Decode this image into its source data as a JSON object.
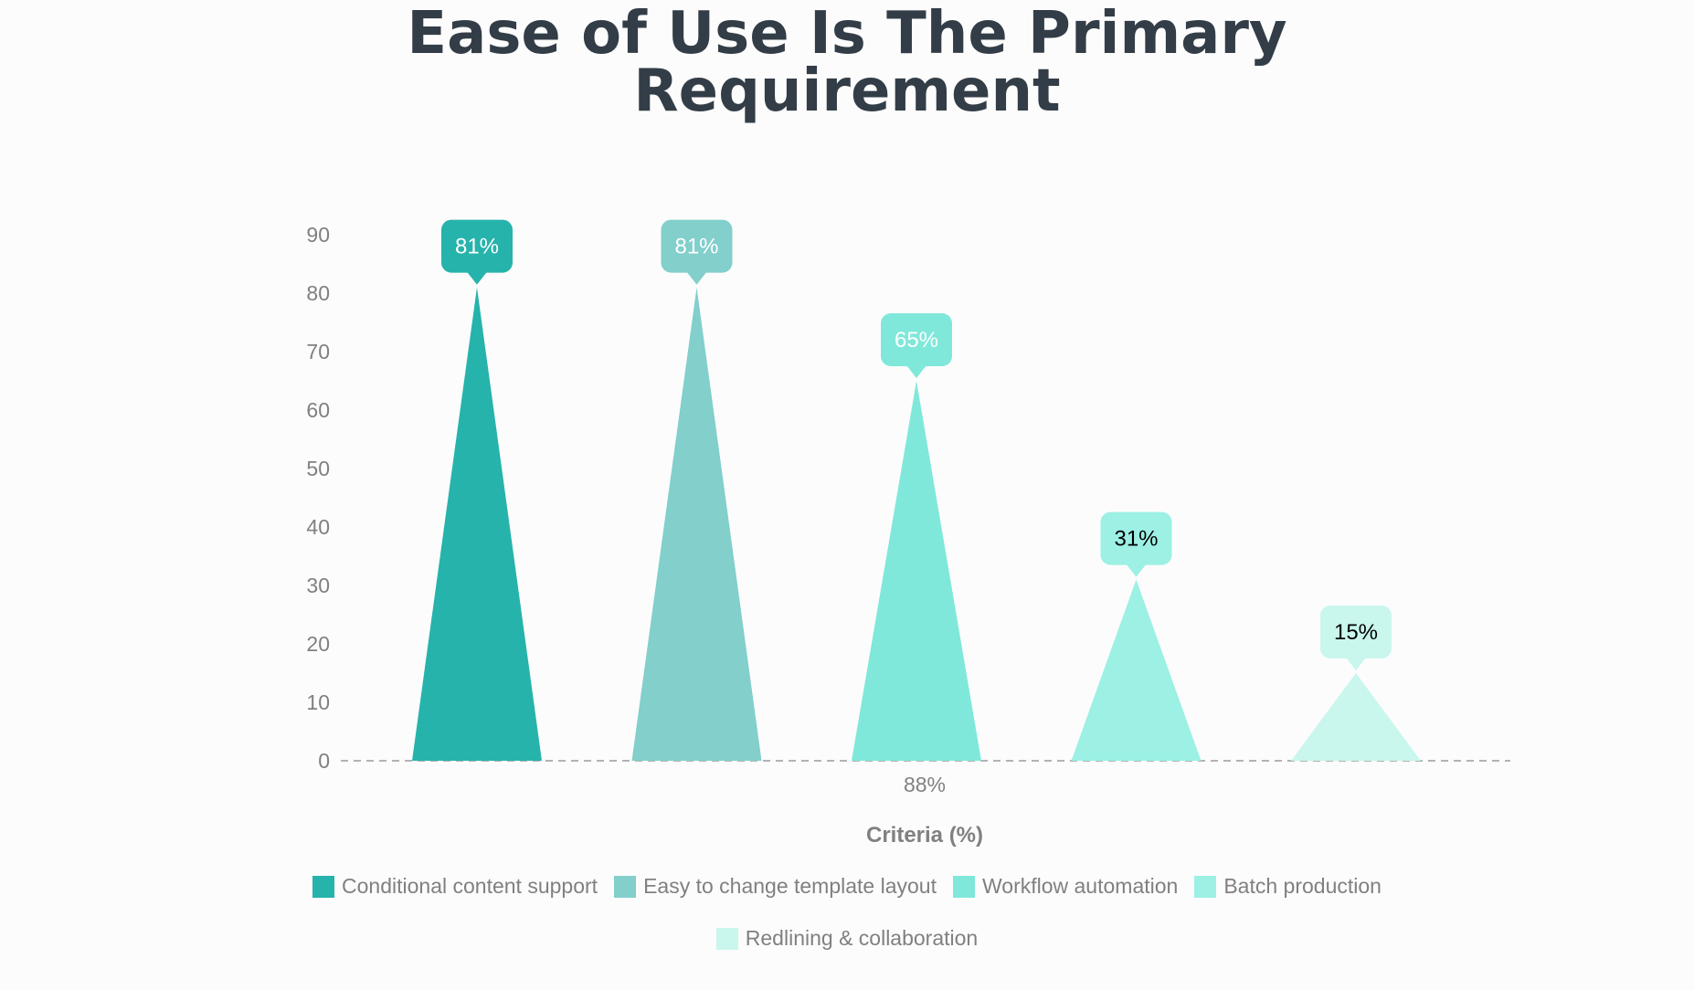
{
  "chart_data": {
    "type": "bar",
    "title_lines": [
      "Ease of Use Is The Primary",
      "Requirement"
    ],
    "xlabel": "Criteria (%)",
    "x_tick_label": "88%",
    "ylabel": "",
    "ylim": [
      0,
      90
    ],
    "y_ticks": [
      0,
      10,
      20,
      30,
      40,
      50,
      60,
      70,
      80,
      90
    ],
    "legend_position": "bottom",
    "bar_style": "pyramid",
    "series": [
      {
        "name": "Conditional content support",
        "value": 81,
        "label": "81%",
        "color": "#26b3ab",
        "label_color": "#ffffff"
      },
      {
        "name": "Easy to change template layout",
        "value": 81,
        "label": "81%",
        "color": "#82cfcc",
        "label_color": "#ffffff"
      },
      {
        "name": "Workflow automation",
        "value": 65,
        "label": "65%",
        "color": "#80e8da",
        "label_color": "#ffffff"
      },
      {
        "name": "Batch production",
        "value": 31,
        "label": "31%",
        "color": "#9cf0e4",
        "label_color": "#000000"
      },
      {
        "name": "Redlining & collaboration",
        "value": 15,
        "label": "15%",
        "color": "#c9f6ed",
        "label_color": "#000000"
      }
    ]
  }
}
